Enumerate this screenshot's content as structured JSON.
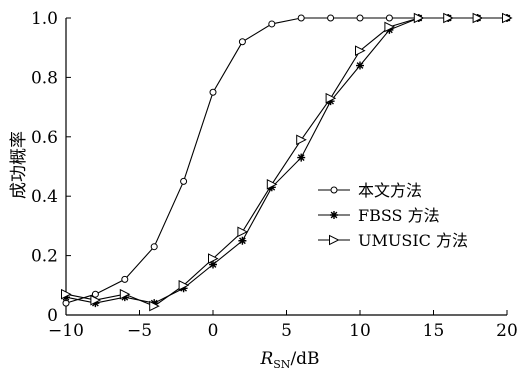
{
  "chart_data": {
    "type": "line",
    "title": "",
    "xlabel": "R_SN/dB",
    "xlabel_main": "R",
    "xlabel_sub": "SN",
    "xlabel_unit": "/dB",
    "ylabel": "成功概率",
    "xlim": [
      -10,
      20
    ],
    "ylim": [
      0,
      1.0
    ],
    "x_ticks": [
      -10,
      -5,
      0,
      5,
      10,
      15,
      20
    ],
    "x_tick_labels": [
      "−10",
      "−5",
      "0",
      "5",
      "10",
      "15",
      "20"
    ],
    "y_ticks": [
      0,
      0.2,
      0.4,
      0.6,
      0.8,
      1.0
    ],
    "y_tick_labels": [
      "0",
      "0.2",
      "0.4",
      "0.6",
      "0.8",
      "1.0"
    ],
    "grid": false,
    "legend_position": "center-right",
    "series": [
      {
        "name": "本文方法",
        "marker": "circle",
        "x": [
          -10,
          -8,
          -6,
          -4,
          -2,
          0,
          2,
          4,
          6,
          8,
          10,
          12,
          14,
          16,
          18,
          20
        ],
        "y": [
          0.04,
          0.07,
          0.12,
          0.23,
          0.45,
          0.75,
          0.92,
          0.98,
          1.0,
          1.0,
          1.0,
          1.0,
          1.0,
          1.0,
          1.0,
          1.0
        ]
      },
      {
        "name": "FBSS 方法",
        "marker": "star",
        "x": [
          -10,
          -8,
          -6,
          -4,
          -2,
          0,
          2,
          4,
          6,
          8,
          10,
          12,
          14,
          16,
          18,
          20
        ],
        "y": [
          0.06,
          0.04,
          0.06,
          0.04,
          0.09,
          0.17,
          0.25,
          0.43,
          0.53,
          0.72,
          0.84,
          0.96,
          1.0,
          1.0,
          1.0,
          1.0
        ]
      },
      {
        "name": "UMUSIC 方法",
        "marker": "triangle-right",
        "x": [
          -10,
          -8,
          -6,
          -4,
          -2,
          0,
          2,
          4,
          6,
          8,
          10,
          12,
          14,
          16,
          18,
          20
        ],
        "y": [
          0.07,
          0.05,
          0.07,
          0.03,
          0.1,
          0.19,
          0.28,
          0.44,
          0.59,
          0.73,
          0.89,
          0.97,
          1.0,
          1.0,
          1.0,
          1.0
        ]
      }
    ]
  }
}
